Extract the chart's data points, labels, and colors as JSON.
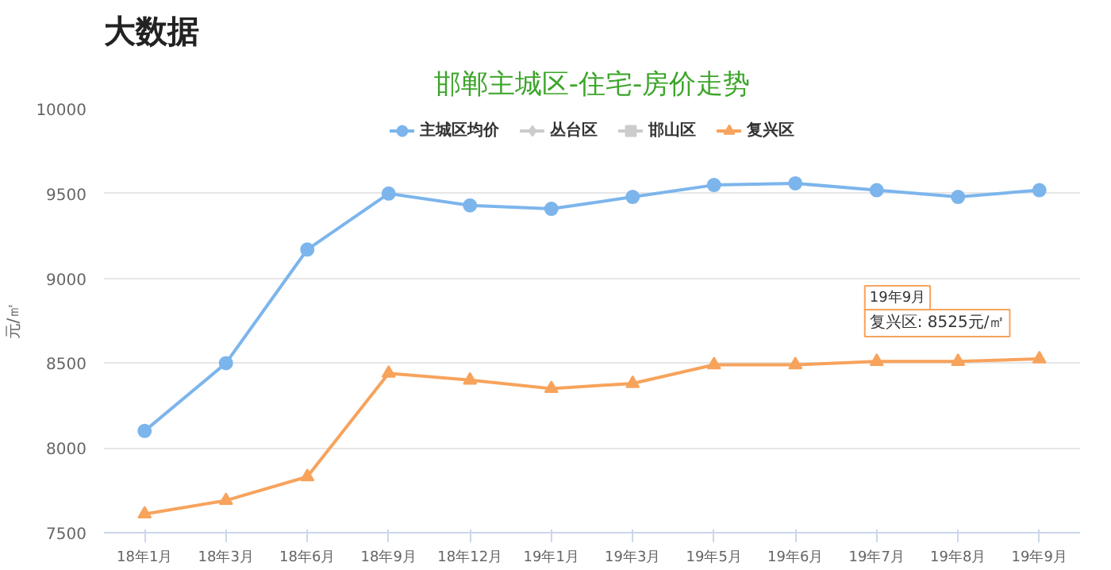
{
  "chart_data": {
    "type": "line",
    "title": "大数据",
    "subtitle": "邯郸主城区-住宅-房价走势",
    "ylabel": "元/㎡",
    "categories": [
      "18年1月",
      "18年3月",
      "18年6月",
      "18年9月",
      "18年12月",
      "19年1月",
      "19年3月",
      "19年5月",
      "19年6月",
      "19年7月",
      "19年8月",
      "19年9月"
    ],
    "series": [
      {
        "name": "主城区均价",
        "color": "#7cb5ec",
        "marker": "circle",
        "values": [
          8100,
          8500,
          9170,
          9500,
          9430,
          9410,
          9480,
          9550,
          9560,
          9520,
          9480,
          9520
        ]
      },
      {
        "name": "丛台区",
        "color": "#cccccc",
        "marker": "diamond",
        "values": [
          null,
          null,
          null,
          null,
          null,
          null,
          null,
          null,
          null,
          null,
          null,
          null
        ]
      },
      {
        "name": "邯山区",
        "color": "#cccccc",
        "marker": "square",
        "values": [
          null,
          null,
          null,
          null,
          null,
          null,
          null,
          null,
          null,
          null,
          null,
          null
        ]
      },
      {
        "name": "复兴区",
        "color": "#f7a35c",
        "marker": "triangle",
        "values": [
          7610,
          7690,
          7830,
          8440,
          8400,
          8350,
          8380,
          8490,
          8490,
          8510,
          8510,
          8525
        ]
      }
    ],
    "ylim": [
      7500,
      10000
    ],
    "yticks": [
      7500,
      8000,
      8500,
      9000,
      9500,
      10000
    ],
    "grid": "y",
    "legend": "top",
    "annotations": [
      "19年9月",
      {
        "text": "复兴区: 8525元/㎡",
        "x": "19年9月",
        "y": 8525
      }
    ]
  }
}
